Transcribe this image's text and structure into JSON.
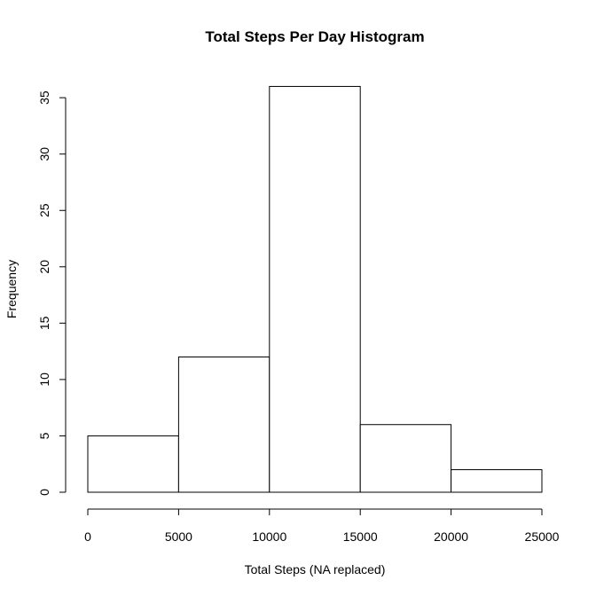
{
  "chart_data": {
    "type": "bar",
    "title": "Total Steps Per Day Histogram",
    "xlabel": "Total Steps (NA replaced)",
    "ylabel": "Frequency",
    "bins": [
      {
        "from": 0,
        "to": 5000,
        "count": 5
      },
      {
        "from": 5000,
        "to": 10000,
        "count": 12
      },
      {
        "from": 10000,
        "to": 15000,
        "count": 36
      },
      {
        "from": 15000,
        "to": 20000,
        "count": 6
      },
      {
        "from": 20000,
        "to": 25000,
        "count": 2
      }
    ],
    "xlim": [
      0,
      25000
    ],
    "ylim": [
      0,
      36
    ],
    "x_ticks": [
      0,
      5000,
      10000,
      15000,
      20000,
      25000
    ],
    "y_ticks": [
      0,
      5,
      10,
      15,
      20,
      25,
      30,
      35
    ],
    "grid": false,
    "colors": {
      "bar_fill": "#ffffff",
      "bar_stroke": "#000000",
      "axis": "#000000"
    }
  }
}
